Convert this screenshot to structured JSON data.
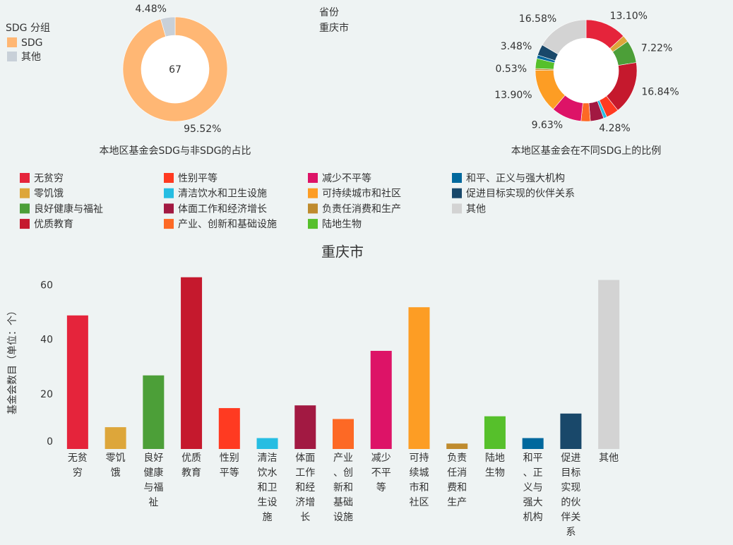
{
  "filter": {
    "label": "省份",
    "value": "重庆市"
  },
  "chart_data": [
    {
      "type": "donut",
      "title": "本地区基金会SDG与非SDG的占比",
      "legend_title": "SDG 分组",
      "categories": [
        "SDG",
        "其他"
      ],
      "values": [
        95.52,
        4.48
      ],
      "value_labels": [
        "95.52%",
        "4.48%"
      ],
      "colors": [
        "#ffb774",
        "#c8d0d8"
      ],
      "center_label": 67
    },
    {
      "type": "donut",
      "title": "本地区基金会在不同SDG上的比例",
      "categories": [
        "无贫穷",
        "零饥饿",
        "良好健康与福祉",
        "优质教育",
        "性别平等",
        "清洁饮水和卫生设施",
        "体面工作和经济增长",
        "产业、创新和基础设施",
        "减少不平等",
        "可持续城市和社区",
        "负责任消费和生产",
        "陆地生物",
        "和平、正义与强大机构",
        "促进目标实现的伙伴关系",
        "其他"
      ],
      "values": [
        13.1,
        2.14,
        7.22,
        16.84,
        4.01,
        1.07,
        4.28,
        2.94,
        9.63,
        13.9,
        0.53,
        3.21,
        1.07,
        3.48,
        16.58
      ],
      "value_labels": [
        "13.10%",
        null,
        "7.22%",
        "16.84%",
        null,
        null,
        "4.28%",
        null,
        "9.63%",
        "13.90%",
        "0.53%",
        null,
        null,
        "3.48%",
        "16.58%"
      ],
      "colors": [
        "#e5243b",
        "#dda63a",
        "#4c9f38",
        "#c5192d",
        "#ff3a21",
        "#26bde2",
        "#a21942",
        "#fd6925",
        "#dd1367",
        "#fd9d24",
        "#bf8b2e",
        "#56c02b",
        "#00689d",
        "#19486a",
        "#d3d3d3"
      ]
    },
    {
      "type": "bar",
      "title": "重庆市",
      "ylabel": "基金会数目（单位：个）",
      "categories": [
        "无贫穷",
        "零饥饿",
        "良好健康与福祉",
        "优质教育",
        "性别平等",
        "清洁饮水和卫生设施",
        "体面工作和经济增长",
        "产业、创新和基础设施",
        "减少不平等",
        "可持续城市和社区",
        "负责任消费和生产",
        "陆地生物",
        "和平、正义与强大机构",
        "促进目标实现的伙伴关系",
        "其他"
      ],
      "values": [
        49,
        8,
        27,
        63,
        15,
        4,
        16,
        11,
        36,
        52,
        2,
        12,
        4,
        13,
        62
      ],
      "colors": [
        "#e5243b",
        "#dda63a",
        "#4c9f38",
        "#c5192d",
        "#ff3a21",
        "#26bde2",
        "#a21942",
        "#fd6925",
        "#dd1367",
        "#fd9d24",
        "#bf8b2e",
        "#56c02b",
        "#00689d",
        "#19486a",
        "#d3d3d3"
      ],
      "ylim": [
        0,
        65
      ],
      "yticks": [
        0,
        20,
        40,
        60
      ],
      "grid": false
    }
  ]
}
